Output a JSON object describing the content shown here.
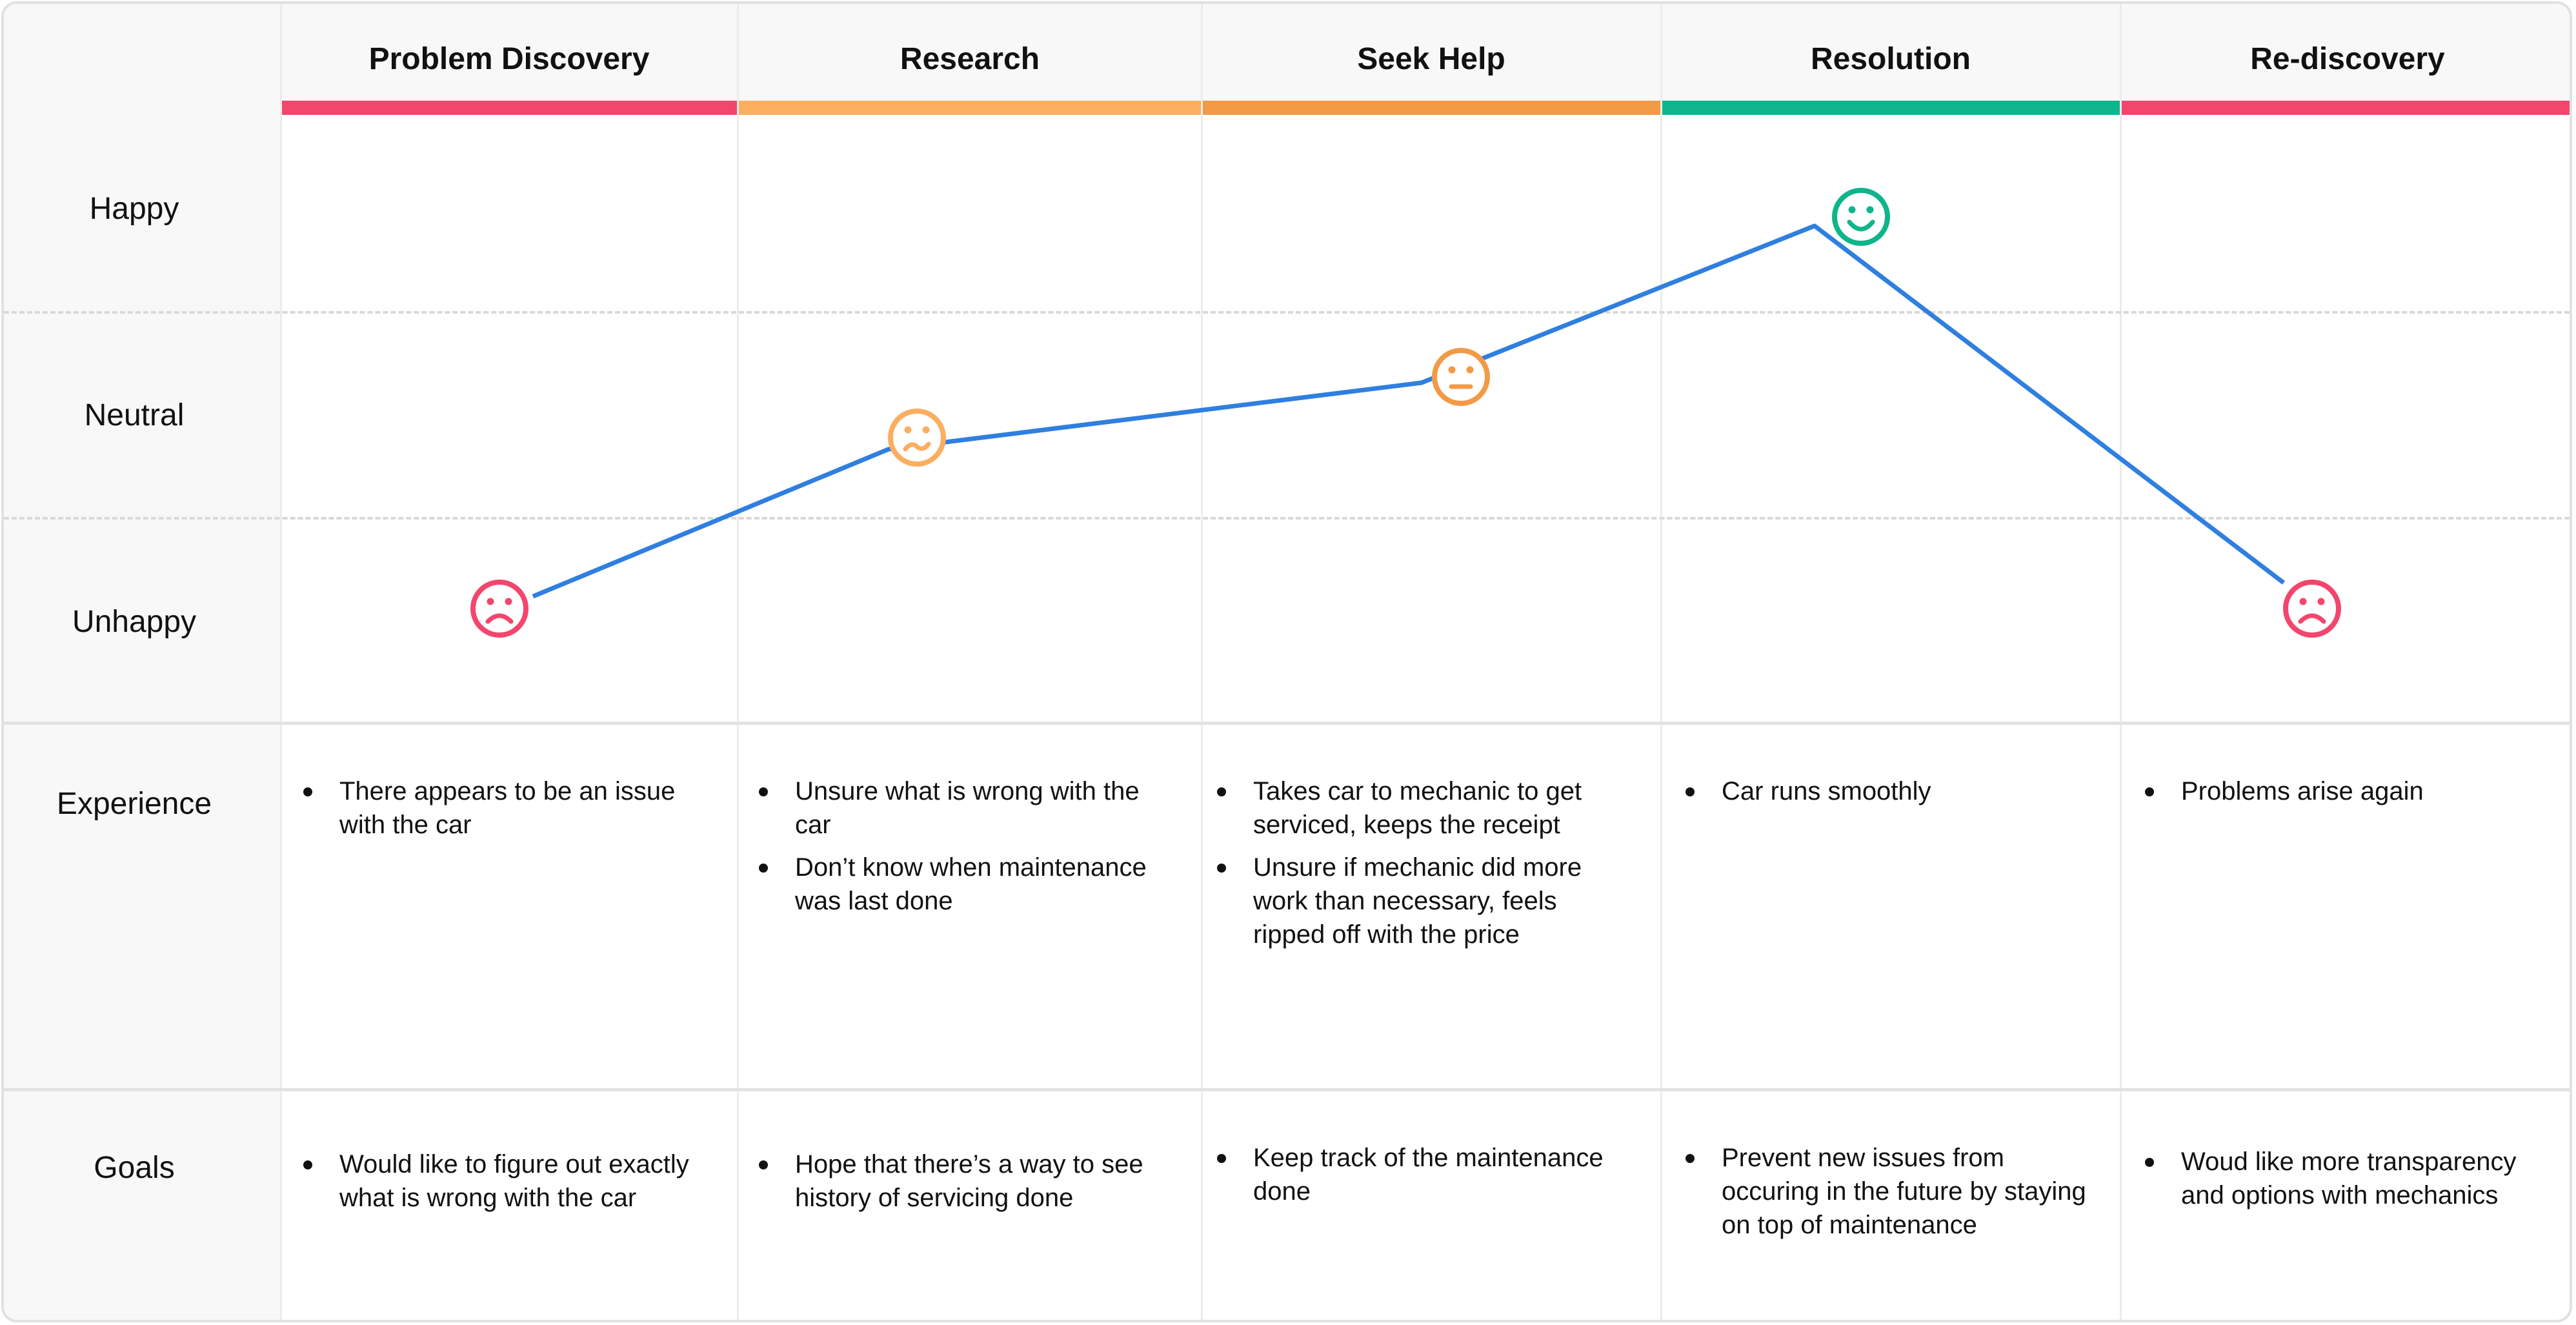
{
  "stages": [
    {
      "title": "Problem Discovery",
      "color": "#f2466d",
      "emotion": "Unhappy",
      "face": "sad-face-icon",
      "experience": [
        "There appears to be an issue with the car"
      ],
      "goals": [
        "Would like to figure out exactly what is wrong with the car"
      ]
    },
    {
      "title": "Research",
      "color": "#fbae60",
      "emotion": "Neutral-low",
      "face": "worried-face-icon",
      "experience": [
        "Unsure what is wrong with the car",
        "Don’t know when maintenance was last done"
      ],
      "goals": [
        "Hope that there’s a way to see history of servicing done"
      ]
    },
    {
      "title": "Seek Help",
      "color": "#f29a46",
      "emotion": "Neutral",
      "face": "neutral-face-icon",
      "experience": [
        "Takes car to mechanic to get serviced, keeps the receipt",
        "Unsure if mechanic did more work than necessary, feels ripped off with the price"
      ],
      "goals": [
        "Keep track of the maintenance done"
      ]
    },
    {
      "title": "Resolution",
      "color": "#0fb58a",
      "emotion": "Happy",
      "face": "happy-face-icon",
      "experience": [
        "Car runs smoothly"
      ],
      "goals": [
        "Prevent new issues from occuring in the future by staying on top of maintenance"
      ]
    },
    {
      "title": "Re-discovery",
      "color": "#f2466d",
      "emotion": "Unhappy",
      "face": "sad-face-icon",
      "experience": [
        "Problems arise again"
      ],
      "goals": [
        "Woud like more transparency and options with mechanics"
      ]
    }
  ],
  "emotion_levels": [
    "Happy",
    "Neutral",
    "Unhappy"
  ],
  "row_labels": {
    "experience": "Experience",
    "goals": "Goals"
  },
  "line_color": "#2f7fe0"
}
